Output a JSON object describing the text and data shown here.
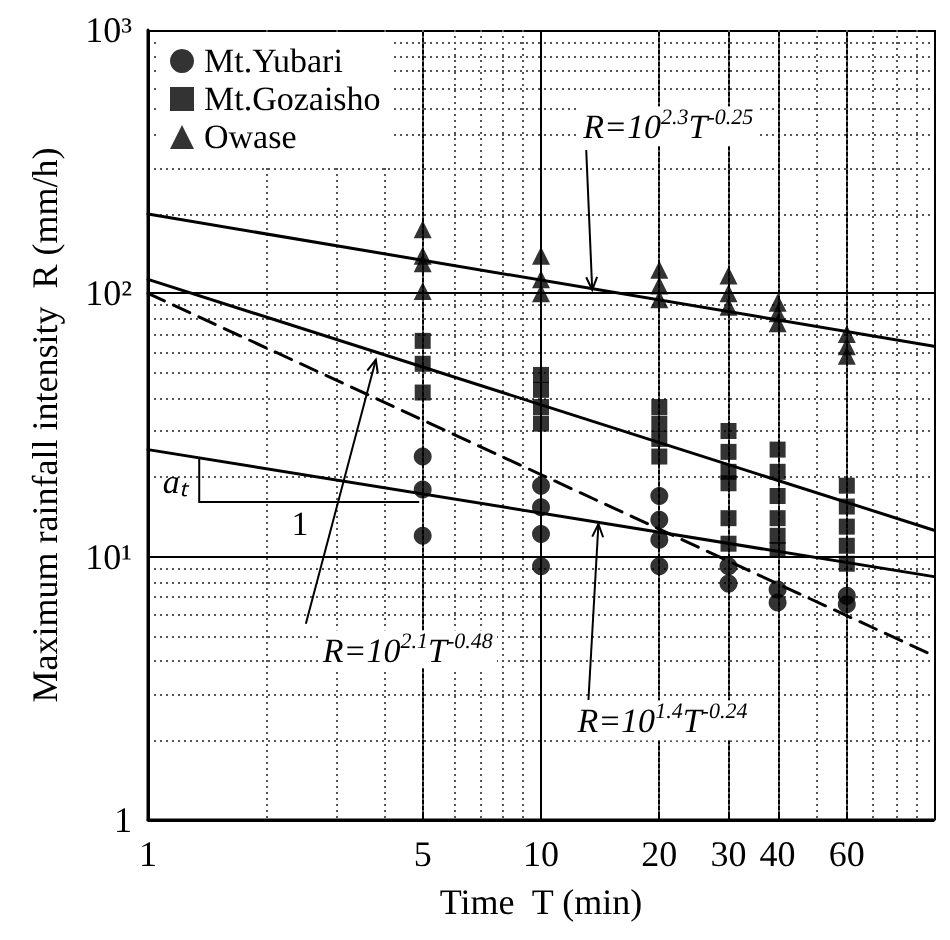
{
  "chart_data": {
    "type": "scatter",
    "xlabel": "Time  T (min)",
    "ylabel": "Maximum rainfall intensity  R (mm/h)",
    "log": "xy",
    "grid": true,
    "legend": "top left",
    "xlim": [
      1,
      100
    ],
    "xticks": [
      1,
      5,
      10,
      20,
      30,
      40,
      60,
      {
        "value": 100,
        "label": null
      }
    ],
    "ylim": [
      1,
      1000
    ],
    "yticks": [
      1,
      {
        "value": 10,
        "label": "10¹"
      },
      {
        "value": 100,
        "label": "10²"
      },
      {
        "value": 1000,
        "label": "10³"
      }
    ],
    "series": [
      {
        "name": "Mt.Yubari",
        "marker": "circle",
        "color": "#000000",
        "x": [
          5,
          5,
          5,
          10,
          10,
          10,
          10,
          20,
          20,
          20,
          20,
          30,
          30,
          40,
          40,
          60,
          60
        ],
        "values": [
          24,
          18,
          12,
          18.6,
          15.4,
          12.2,
          9.2,
          17,
          13.8,
          11.6,
          9.2,
          9.2,
          7.9,
          7.5,
          6.7,
          7.1,
          6.6
        ]
      },
      {
        "name": "Mt.Gozaisho",
        "marker": "square",
        "color": "#000000",
        "x": [
          5,
          5,
          5,
          10,
          10,
          10,
          10,
          20,
          20,
          20,
          20,
          30,
          30,
          30,
          30,
          30,
          30,
          40,
          40,
          40,
          40,
          40,
          40,
          60,
          60,
          60,
          60,
          60
        ],
        "values": [
          66,
          54,
          42,
          49,
          43,
          37,
          32,
          37,
          32,
          28,
          24,
          30,
          25,
          21,
          19,
          14,
          11.2,
          25.5,
          21,
          17,
          14,
          12,
          10.6,
          18.6,
          15.5,
          13,
          11,
          9.4
        ]
      },
      {
        "name": "Owase",
        "marker": "triangle",
        "color": "#000000",
        "x": [
          5,
          5,
          5,
          5,
          10,
          10,
          10,
          20,
          20,
          20,
          30,
          30,
          30,
          40,
          40,
          40,
          60,
          60,
          60
        ],
        "values": [
          175,
          139,
          130,
          102,
          139,
          113,
          100,
          123,
          107,
          95,
          117,
          100,
          89,
          92,
          84,
          77,
          70,
          63,
          58
        ]
      },
      {
        "type": "line",
        "marker": "none",
        "line_style": "solid",
        "color": "#000000",
        "x": [
          1,
          100
        ],
        "values": [
          200,
          63
        ]
      },
      {
        "type": "line",
        "marker": "none",
        "line_style": "solid",
        "color": "#000000",
        "x": [
          1,
          100
        ],
        "values": [
          113,
          12.6
        ]
      },
      {
        "type": "line",
        "marker": "none",
        "line_style": "dashed",
        "color": "#000000",
        "x": [
          1,
          100
        ],
        "values": [
          100,
          4.2
        ]
      },
      {
        "type": "line",
        "marker": "none",
        "line_style": "solid",
        "color": "#000000",
        "x": [
          1,
          100
        ],
        "values": [
          25.5,
          8.4
        ]
      }
    ],
    "annotations": [
      {
        "text": "R=10$^{2.3}$T$^{-0.25}$",
        "x": 13.5,
        "y": 103
      },
      {
        "text": "R=10$^{2.1}$T$^{-0.48}$",
        "x": 3.8,
        "y": 56
      },
      {
        "text": "R=10$^{1.4}$T$^{-0.24}$",
        "x": 14,
        "y": 13.3
      },
      {
        "text": "aₜ",
        "x": 1.35,
        "y": 23.7
      },
      "1"
    ]
  }
}
